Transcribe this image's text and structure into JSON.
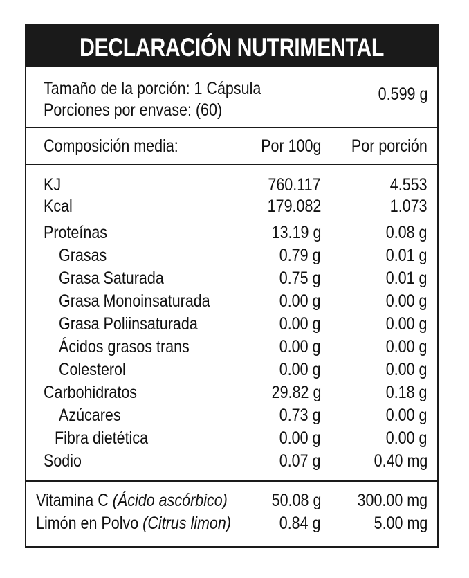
{
  "title": "DECLARACIÓN NUTRIMENTAL",
  "serving": {
    "size_label": "Tamaño de la porción: 1 Cápsula",
    "servings_label": "Porciones por envase: (60)",
    "weight": "0.599 g"
  },
  "columns": {
    "composition": "Composición media:",
    "per_100g": "Por 100g",
    "per_serving": "Por porción"
  },
  "energy": [
    {
      "name": "KJ",
      "per_100g": "760.117",
      "per_serving": "4.553"
    },
    {
      "name": "Kcal",
      "per_100g": "179.082",
      "per_serving": "1.073"
    }
  ],
  "nutrients": [
    {
      "name": "Proteínas",
      "per_100g": "13.19 g",
      "per_serving": "0.08 g"
    },
    {
      "name": "Grasas",
      "per_100g": "0.79 g",
      "per_serving": "0.01 g"
    },
    {
      "name": "Grasa Saturada",
      "per_100g": "0.75 g",
      "per_serving": "0.01 g"
    },
    {
      "name": "Grasa Monoinsaturada",
      "per_100g": "0.00 g",
      "per_serving": "0.00 g"
    },
    {
      "name": "Grasa Poliinsaturada",
      "per_100g": "0.00 g",
      "per_serving": "0.00 g"
    },
    {
      "name": "Ácidos grasos trans",
      "per_100g": "0.00 g",
      "per_serving": "0.00 g"
    },
    {
      "name": "Colesterol",
      "per_100g": "0.00 g",
      "per_serving": "0.00 g"
    },
    {
      "name": "Carbohidratos",
      "per_100g": "29.82 g",
      "per_serving": "0.18 g"
    },
    {
      "name": "Azúcares",
      "per_100g": "0.73 g",
      "per_serving": "0.00 g"
    },
    {
      "name": "Fibra dietética",
      "per_100g": "0.00 g",
      "per_serving": "0.00 g"
    },
    {
      "name": "Sodio",
      "per_100g": "0.07 g",
      "per_serving": "0.40 mg"
    }
  ],
  "actives": [
    {
      "name": "Vitamina C",
      "note": "(Ácido ascórbico)",
      "per_100g": "50.08 g",
      "per_serving": "300.00 mg"
    },
    {
      "name": "Limón en Polvo",
      "note": "(Citrus limon)",
      "per_100g": "0.84 g",
      "per_serving": "5.00 mg"
    }
  ]
}
